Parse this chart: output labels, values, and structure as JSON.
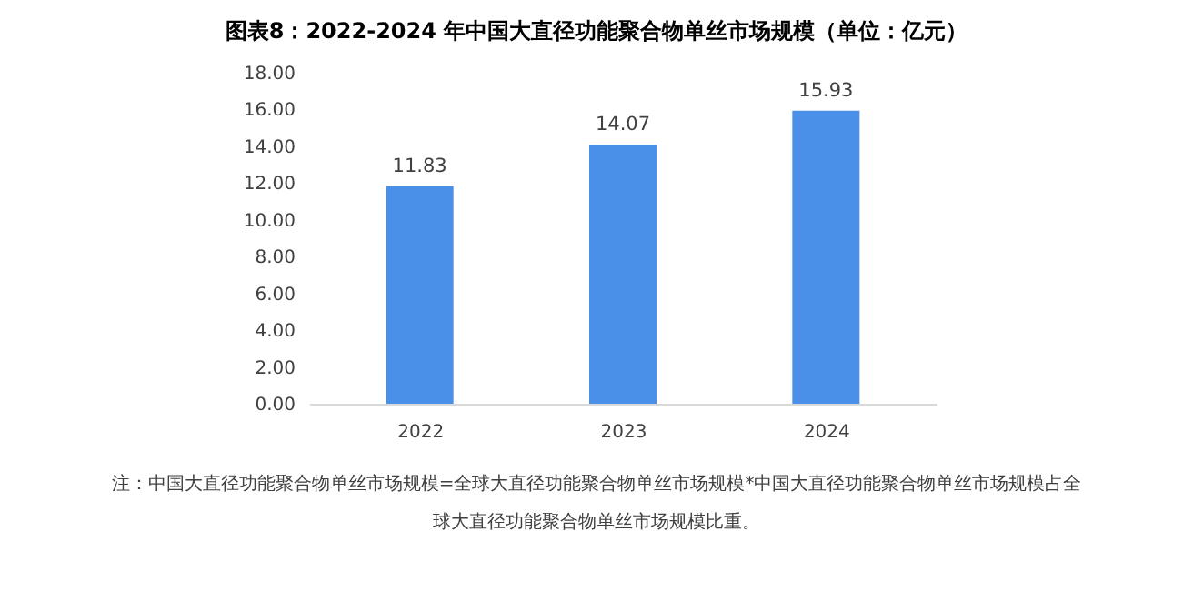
{
  "chart_data": {
    "type": "bar",
    "title": "图表8：2022-2024 年中国大直径功能聚合物单丝市场规模（单位：亿元）",
    "categories": [
      "2022",
      "2023",
      "2024"
    ],
    "values": [
      11.83,
      14.07,
      15.93
    ],
    "color": "#4a8fe8",
    "ylim": [
      0,
      18
    ],
    "yticks": [
      {
        "value": 0,
        "label": "0.00"
      },
      {
        "value": 2,
        "label": "2.00"
      },
      {
        "value": 4,
        "label": "4.00"
      },
      {
        "value": 6,
        "label": "6.00"
      },
      {
        "value": 8,
        "label": "8.00"
      },
      {
        "value": 10,
        "label": "10.00"
      },
      {
        "value": 12,
        "label": "12.00"
      },
      {
        "value": 14,
        "label": "14.00"
      },
      {
        "value": 16,
        "label": "16.00"
      },
      {
        "value": 18,
        "label": "18.00"
      }
    ],
    "data_labels": true,
    "grid": false,
    "annotations": [
      "注：中国大直径功能聚合物单丝市场规模=全球大直径功能聚合物单丝市场规模*中国大直径功能聚合物单丝市场规模占全球大直径功能聚合物单丝市场规模比重。"
    ]
  }
}
